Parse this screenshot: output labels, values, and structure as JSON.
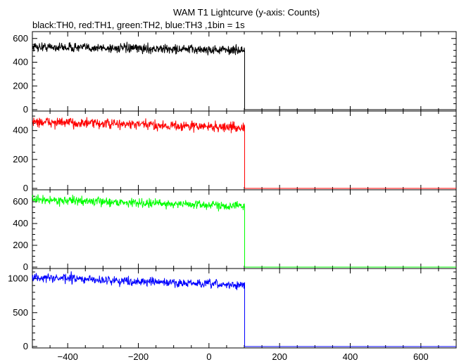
{
  "chart_data": {
    "type": "line",
    "title": "WAM T1 Lightcurve (y-axis: Counts)",
    "subtitle": "black:TH0, red:TH1, green:TH2, blue:TH3 ,1bin = 1s",
    "xlim": [
      -500,
      700
    ],
    "x_ticks": [
      -400,
      -200,
      0,
      200,
      400,
      600
    ],
    "x_tick_labels": [
      "−400",
      "−200",
      "0",
      "200",
      "400",
      "600"
    ],
    "grid": false,
    "panels": [
      {
        "name": "TH0",
        "color": "#000000",
        "ylim": [
          0,
          640
        ],
        "y_ticks": [
          0,
          200,
          400,
          600
        ],
        "y_minor_step": 50,
        "x_start": -500,
        "x_drop": 101,
        "x_end": 700,
        "level_start": 530,
        "level_end": 500,
        "noise": 28,
        "level_after": 0,
        "spike": null
      },
      {
        "name": "TH1",
        "color": "#ff0000",
        "ylim": [
          0,
          520
        ],
        "y_ticks": [
          0,
          200,
          400
        ],
        "y_minor_step": 50,
        "x_start": -500,
        "x_drop": 101,
        "x_end": 700,
        "level_start": 460,
        "level_end": 420,
        "noise": 25,
        "level_after": 0,
        "spike": null
      },
      {
        "name": "TH2",
        "color": "#00ff00",
        "ylim": [
          0,
          690
        ],
        "y_ticks": [
          0,
          200,
          400,
          600
        ],
        "y_minor_step": 50,
        "x_start": -500,
        "x_drop": 101,
        "x_end": 700,
        "level_start": 620,
        "level_end": 560,
        "noise": 28,
        "level_after": 0,
        "spike": null
      },
      {
        "name": "TH3",
        "color": "#0000ff",
        "ylim": [
          -10,
          1120
        ],
        "y_ticks": [
          0,
          500,
          1000
        ],
        "y_minor_step": 100,
        "x_start": -500,
        "x_drop": 101,
        "x_end": 700,
        "level_start": 1020,
        "level_end": 900,
        "noise": 45,
        "level_after": 0,
        "spike": {
          "x": -390,
          "y": 1110
        }
      }
    ]
  }
}
